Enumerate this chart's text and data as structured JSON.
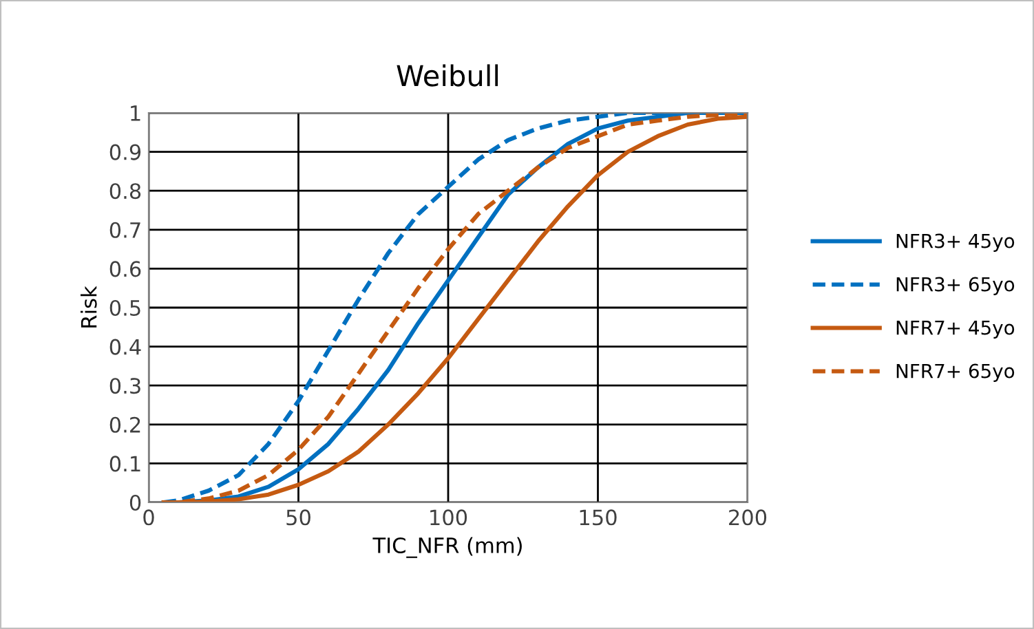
{
  "chart_data": {
    "type": "line",
    "title": "Weibull",
    "xlabel": "TIC_NFR (mm)",
    "ylabel": "Risk",
    "x": [
      5,
      10,
      20,
      30,
      40,
      50,
      60,
      70,
      80,
      90,
      100,
      110,
      120,
      130,
      140,
      150,
      160,
      170,
      180,
      190,
      200
    ],
    "series": [
      {
        "name": "NFR3+ 45yo",
        "color": "#0070c0",
        "line_style": "solid",
        "values": [
          0,
          0,
          0.005,
          0.015,
          0.04,
          0.085,
          0.15,
          0.24,
          0.34,
          0.46,
          0.57,
          0.68,
          0.79,
          0.86,
          0.92,
          0.96,
          0.98,
          0.99,
          1.0,
          1.0,
          1.0
        ]
      },
      {
        "name": "NFR3+ 65yo",
        "color": "#0070c0",
        "line_style": "dashed",
        "values": [
          0,
          0.005,
          0.03,
          0.07,
          0.15,
          0.26,
          0.39,
          0.52,
          0.64,
          0.74,
          0.81,
          0.88,
          0.93,
          0.96,
          0.98,
          0.99,
          1.0,
          1.0,
          1.0,
          1.0,
          1.0
        ]
      },
      {
        "name": "NFR7+ 45yo",
        "color": "#c55a11",
        "line_style": "solid",
        "values": [
          0,
          0,
          0.002,
          0.008,
          0.02,
          0.045,
          0.08,
          0.13,
          0.2,
          0.28,
          0.37,
          0.47,
          0.57,
          0.67,
          0.76,
          0.84,
          0.9,
          0.94,
          0.97,
          0.985,
          0.99
        ]
      },
      {
        "name": "NFR7+ 65yo",
        "color": "#c55a11",
        "line_style": "dashed",
        "values": [
          0,
          0,
          0.01,
          0.03,
          0.07,
          0.135,
          0.22,
          0.33,
          0.44,
          0.55,
          0.65,
          0.74,
          0.8,
          0.86,
          0.91,
          0.94,
          0.97,
          0.98,
          0.99,
          0.995,
          1.0
        ]
      }
    ],
    "xlim": [
      0,
      200
    ],
    "xticks": [
      0,
      50,
      100,
      150,
      200
    ],
    "ylim": [
      0,
      1
    ],
    "yticks": [
      0,
      0.1,
      0.2,
      0.3,
      0.4,
      0.5,
      0.6,
      0.7,
      0.8,
      0.9,
      1
    ],
    "grid": true,
    "legend": "right",
    "marker": "none"
  }
}
